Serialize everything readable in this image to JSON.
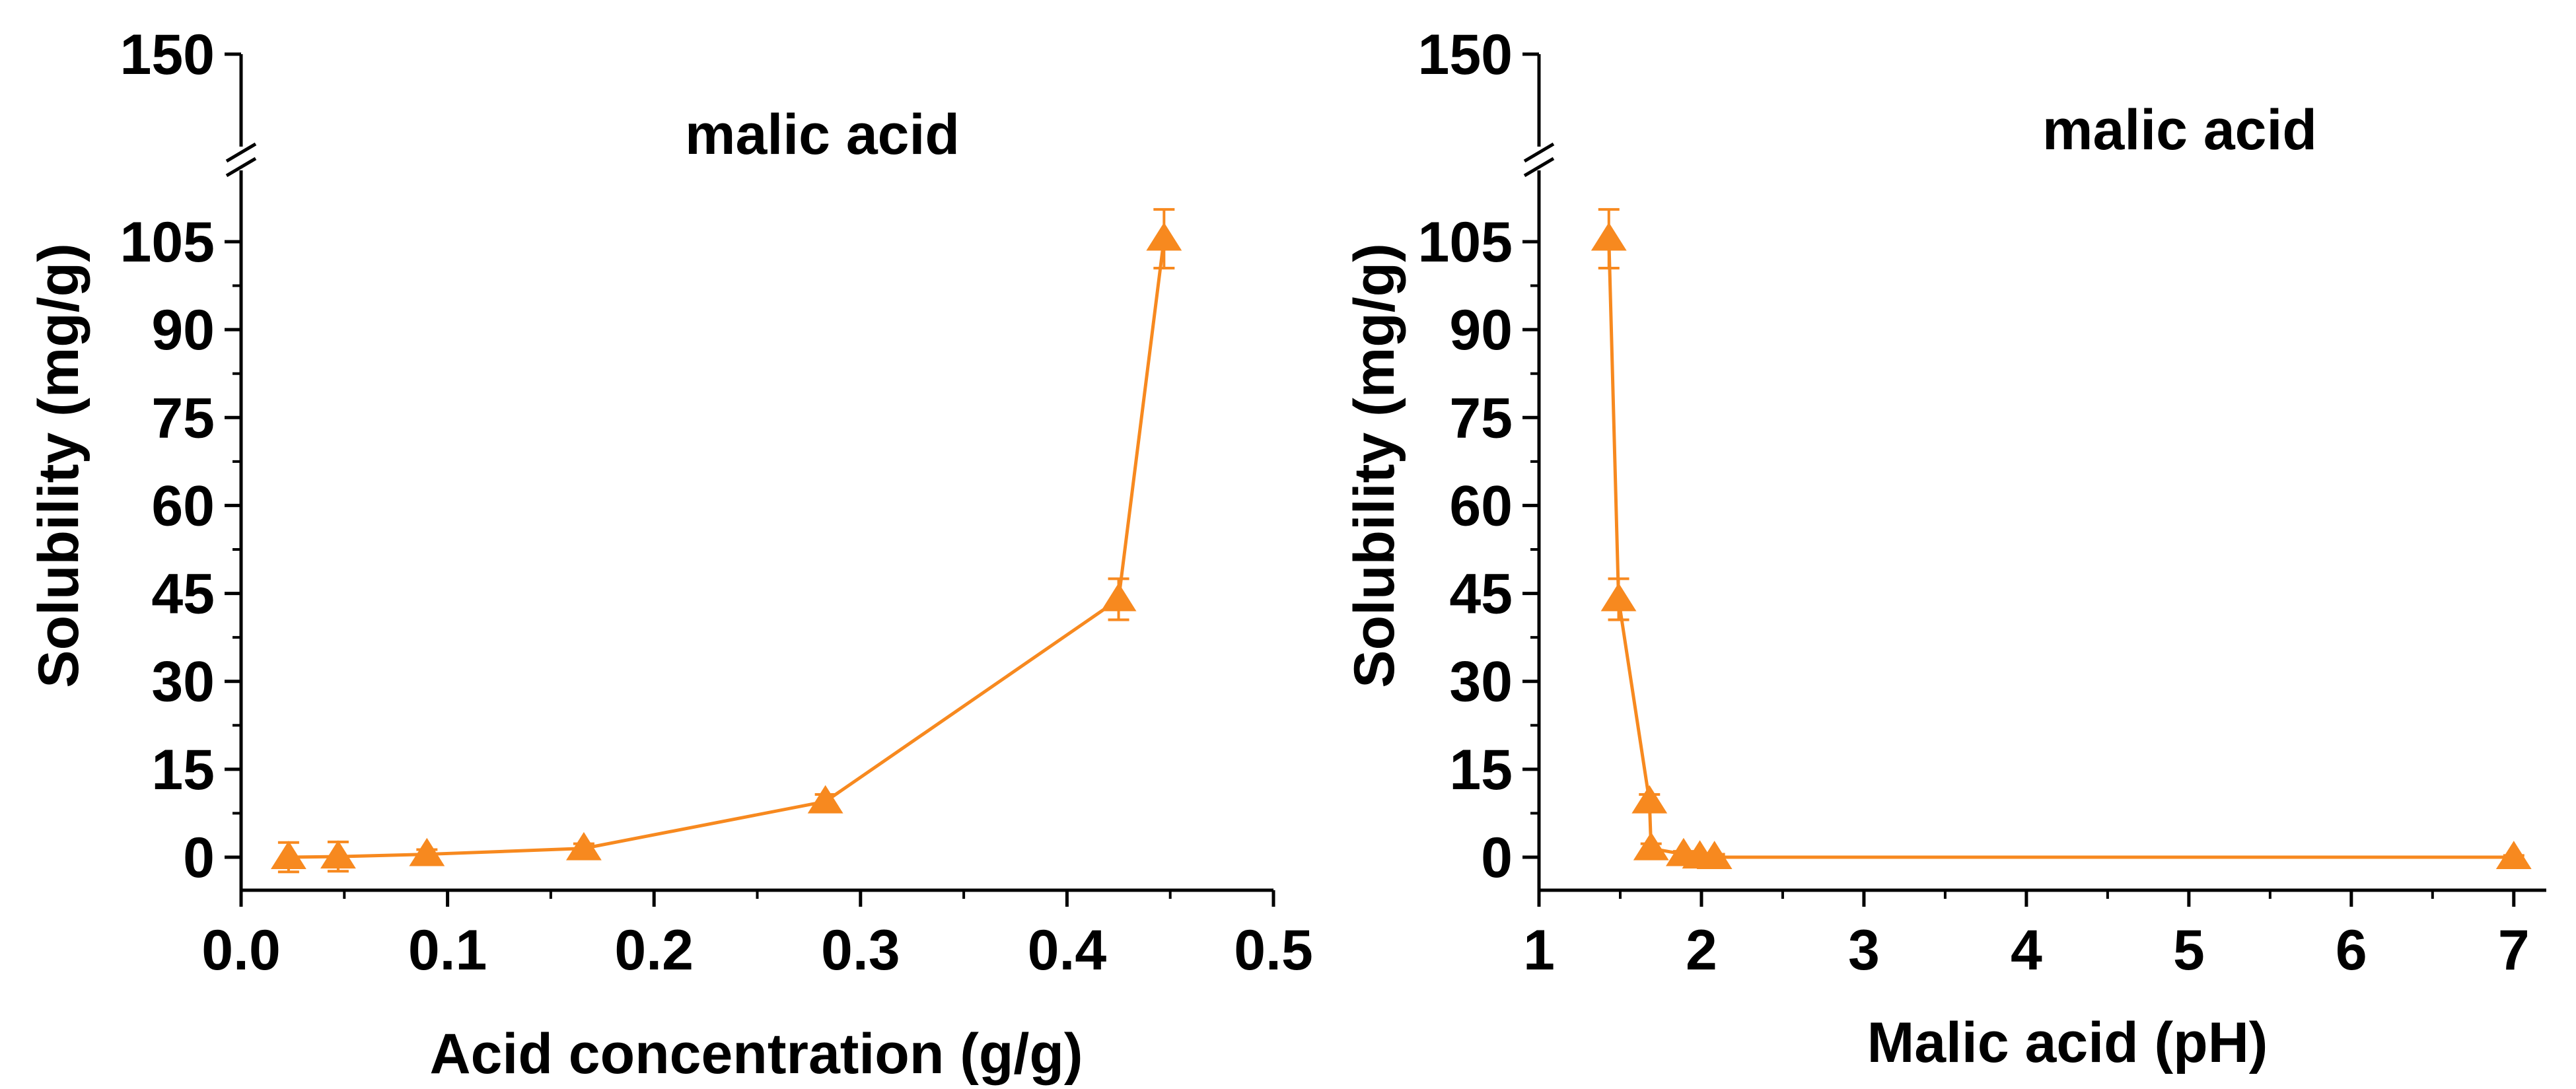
{
  "colors": {
    "series": "#F7891F",
    "axis": "#000000"
  },
  "chart_data": [
    {
      "type": "line",
      "title": "malic acid",
      "xlabel": "Acid concentration (g/g)",
      "ylabel": "Solubility (mg/g)",
      "xlim": [
        0.0,
        0.5
      ],
      "ylim": [
        -5,
        150
      ],
      "y_axis_break": [
        112,
        138
      ],
      "xticks": [
        0.0,
        0.1,
        0.2,
        0.3,
        0.4,
        0.5
      ],
      "xtick_labels": [
        "0.0",
        "0.1",
        "0.2",
        "0.3",
        "0.4",
        "0.5"
      ],
      "yticks": [
        0,
        15,
        30,
        45,
        60,
        75,
        90,
        105,
        150
      ],
      "ytick_labels": [
        "0",
        "15",
        "30",
        "45",
        "60",
        "75",
        "90",
        "105",
        "150"
      ],
      "marker": "triangle",
      "grid": false,
      "series": [
        {
          "x": [
            0.023,
            0.047,
            0.09,
            0.166,
            0.283,
            0.425,
            0.447
          ],
          "y": [
            0.0,
            0.1,
            0.5,
            1.5,
            9.5,
            44.0,
            105.5
          ],
          "err": [
            2.5,
            2.5,
            0.8,
            0.8,
            1.2,
            3.5,
            5.0
          ]
        }
      ]
    },
    {
      "type": "line",
      "title": "malic acid",
      "xlabel": "Malic acid (pH)",
      "ylabel": "Solubility (mg/g)",
      "xlim": [
        1,
        7.2
      ],
      "ylim": [
        -5,
        150
      ],
      "y_axis_break": [
        112,
        138
      ],
      "xticks": [
        1,
        2,
        3,
        4,
        5,
        6,
        7
      ],
      "xtick_labels": [
        "1",
        "2",
        "3",
        "4",
        "5",
        "6",
        "7"
      ],
      "yticks": [
        0,
        15,
        30,
        45,
        60,
        75,
        90,
        105,
        150
      ],
      "ytick_labels": [
        "0",
        "15",
        "30",
        "45",
        "60",
        "75",
        "90",
        "105",
        "150"
      ],
      "marker": "triangle",
      "grid": false,
      "series": [
        {
          "x": [
            1.43,
            1.49,
            1.68,
            1.69,
            1.89,
            1.99,
            2.08,
            7.0
          ],
          "y": [
            105.5,
            44.0,
            9.5,
            1.5,
            0.5,
            0.1,
            0.0,
            0.0
          ],
          "err": [
            5.0,
            3.5,
            1.2,
            0.8,
            0.5,
            0.5,
            0.5,
            0.3
          ]
        }
      ]
    }
  ]
}
